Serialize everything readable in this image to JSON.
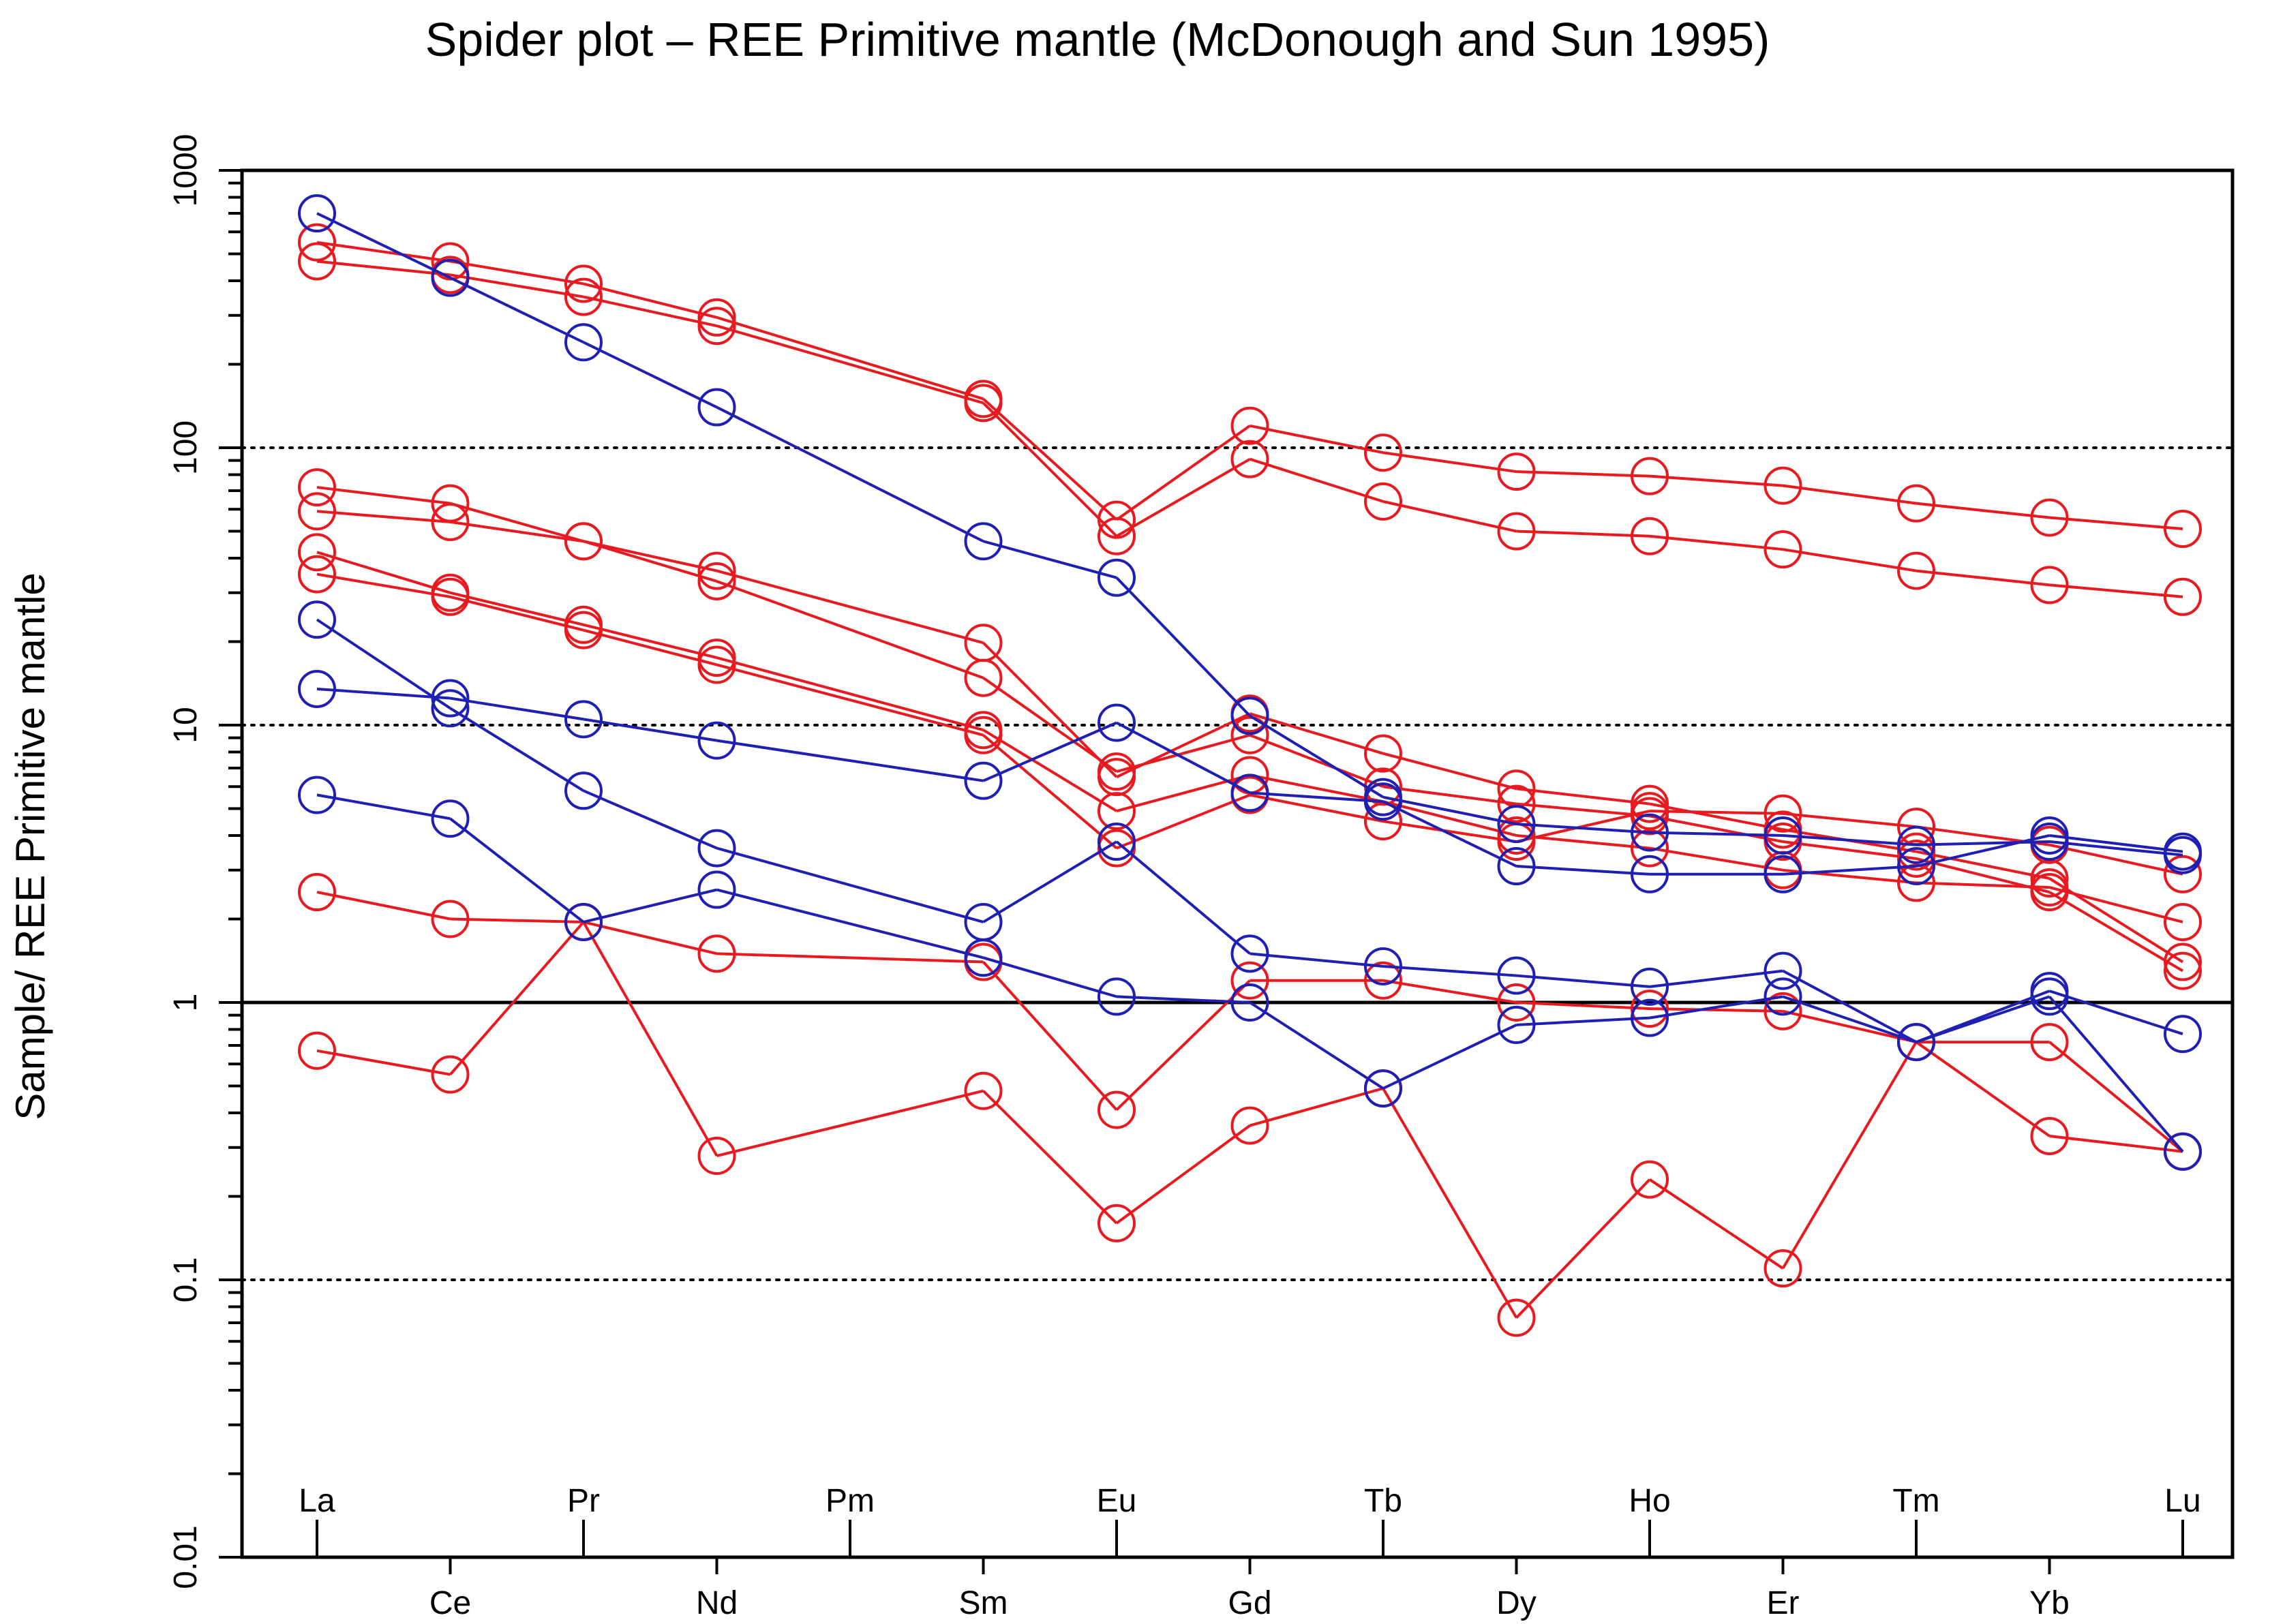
{
  "chart_data": {
    "type": "line",
    "title": "Spider plot –  REE Primitive mantle (McDonough  and  Sun 1995)",
    "xlabel": "",
    "ylabel": "Sample/ REE Primitive mantle",
    "yscale": "log",
    "ylim": [
      0.01,
      1000
    ],
    "yticks": [
      0.01,
      0.1,
      1,
      10,
      100,
      1000
    ],
    "ytick_labels": [
      "0.01",
      "0.1",
      "1",
      "10",
      "100",
      "1000"
    ],
    "reference_line": 1,
    "dotted_gridlines": [
      0.1,
      10,
      100
    ],
    "categories": [
      "La",
      "Ce",
      "Pr",
      "Nd",
      "Pm",
      "Sm",
      "Eu",
      "Gd",
      "Tb",
      "Dy",
      "Ho",
      "Er",
      "Tm",
      "Yb",
      "Lu"
    ],
    "colors": {
      "red": "#e8191f",
      "blue": "#1f1fb4"
    },
    "series": [
      {
        "name": "red-1",
        "color": "red",
        "values": [
          550,
          470,
          390,
          295,
          null,
          150,
          55,
          120,
          96,
          82,
          79,
          73,
          63,
          56,
          51
        ]
      },
      {
        "name": "red-2",
        "color": "red",
        "values": [
          470,
          420,
          350,
          275,
          null,
          145,
          48,
          91,
          64,
          50,
          48,
          43,
          36,
          32,
          29
        ]
      },
      {
        "name": "red-3",
        "color": "red",
        "values": [
          72,
          63,
          46,
          36,
          null,
          19.8,
          6.5,
          11,
          7.9,
          5.9,
          5.2,
          4.2,
          3.5,
          2.8,
          1.4
        ]
      },
      {
        "name": "red-4",
        "color": "red",
        "values": [
          59,
          54,
          46,
          33,
          null,
          14.8,
          6.8,
          9.2,
          6.0,
          5.2,
          4.7,
          3.8,
          3.3,
          2.5,
          1.3
        ]
      },
      {
        "name": "red-5",
        "color": "red",
        "values": [
          42,
          30,
          23,
          17.5,
          null,
          9.6,
          4.9,
          6.6,
          5.3,
          4.0,
          3.6,
          3.0,
          2.7,
          2.6,
          1.95
        ]
      },
      {
        "name": "red-6",
        "color": "red",
        "values": [
          35,
          29,
          22,
          16.5,
          null,
          9.2,
          3.6,
          5.6,
          4.5,
          3.8,
          4.9,
          4.8,
          4.3,
          3.7,
          2.9
        ]
      },
      {
        "name": "red-7",
        "color": "red",
        "values": [
          2.5,
          2.0,
          1.95,
          1.5,
          null,
          1.4,
          0.41,
          1.2,
          1.2,
          1.0,
          0.95,
          0.93,
          0.72,
          0.72,
          0.29
        ]
      },
      {
        "name": "red-8",
        "color": "red",
        "values": [
          0.67,
          0.55,
          1.95,
          0.28,
          null,
          0.48,
          0.16,
          0.36,
          0.49,
          0.073,
          0.23,
          0.11,
          0.72,
          0.33,
          0.29
        ]
      },
      {
        "name": "blue-1",
        "color": "blue",
        "values": [
          700,
          410,
          240,
          140,
          null,
          46,
          34,
          10.8,
          5.5,
          4.4,
          4.1,
          4.0,
          3.7,
          3.8,
          3.4
        ]
      },
      {
        "name": "blue-2",
        "color": "blue",
        "values": [
          24,
          11.5,
          5.8,
          3.6,
          null,
          1.95,
          3.8,
          1.5,
          1.35,
          1.25,
          1.14,
          1.3,
          0.72,
          1.1,
          0.77
        ]
      },
      {
        "name": "blue-3",
        "color": "blue",
        "values": [
          13.5,
          12.5,
          10.5,
          8.8,
          null,
          6.3,
          10.2,
          5.7,
          5.3,
          3.1,
          2.9,
          2.9,
          3.1,
          4.0,
          3.5
        ]
      },
      {
        "name": "blue-4",
        "color": "blue",
        "values": [
          5.6,
          4.6,
          1.95,
          2.55,
          null,
          1.45,
          1.05,
          1.0,
          0.49,
          0.83,
          0.88,
          1.05,
          0.72,
          1.05,
          0.29
        ]
      }
    ]
  }
}
